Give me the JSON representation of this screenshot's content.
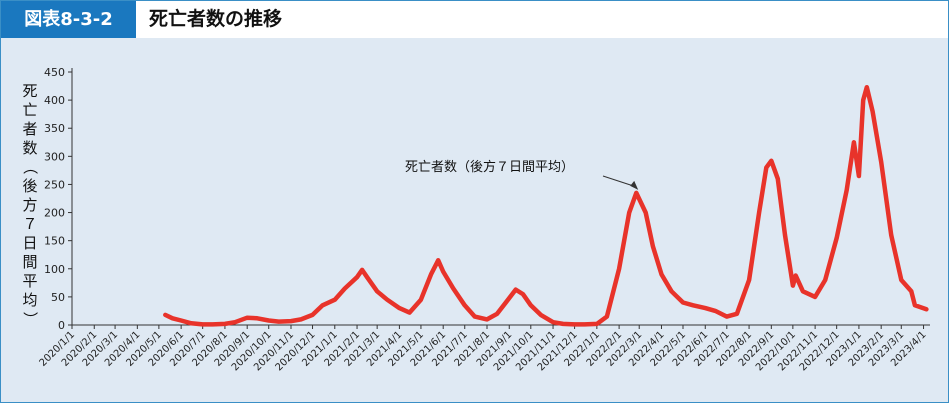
{
  "figure": {
    "badge": "図表8-3-2",
    "title": "死亡者数の推移"
  },
  "chart_data": {
    "type": "line",
    "title": "死亡者数の推移",
    "ylabel": "死亡者数（後方７日間平均）",
    "ylim": [
      0,
      450
    ],
    "yticks": [
      0,
      50,
      100,
      150,
      200,
      250,
      300,
      350,
      400,
      450
    ],
    "x_categories": [
      "2020/1/1",
      "2020/2/1",
      "2020/3/1",
      "2020/4/1",
      "2020/5/1",
      "2020/6/1",
      "2020/7/1",
      "2020/8/1",
      "2020/9/1",
      "2020/10/1",
      "2020/11/1",
      "2020/12/1",
      "2021/1/1",
      "2021/2/1",
      "2021/3/1",
      "2021/4/1",
      "2021/5/1",
      "2021/6/1",
      "2021/7/1",
      "2021/8/1",
      "2021/9/1",
      "2021/10/1",
      "2021/11/1",
      "2021/12/1",
      "2022/1/1",
      "2022/2/1",
      "2022/3/1",
      "2022/4/1",
      "2022/5/1",
      "2022/6/1",
      "2022/7/1",
      "2022/8/1",
      "2022/9/1",
      "2022/10/1",
      "2022/11/1",
      "2022/12/1",
      "2023/1/1",
      "2023/2/1",
      "2023/3/1",
      "2023/4/1"
    ],
    "grid": false,
    "line_color": "#e8332a",
    "annotation": {
      "text": "死亡者数（後方７日間平均）",
      "x": "2022/3/1",
      "y": 235
    },
    "series": [
      {
        "name": "死亡者数（後方７日間平均）",
        "points": [
          [
            "2020/5/10",
            18
          ],
          [
            "2020/5/20",
            12
          ],
          [
            "2020/6/1",
            8
          ],
          [
            "2020/6/15",
            3
          ],
          [
            "2020/7/1",
            1
          ],
          [
            "2020/7/15",
            1
          ],
          [
            "2020/8/1",
            2
          ],
          [
            "2020/8/15",
            5
          ],
          [
            "2020/9/1",
            13
          ],
          [
            "2020/9/15",
            12
          ],
          [
            "2020/10/1",
            8
          ],
          [
            "2020/10/15",
            6
          ],
          [
            "2020/11/1",
            7
          ],
          [
            "2020/11/15",
            10
          ],
          [
            "2020/12/1",
            18
          ],
          [
            "2020/12/15",
            35
          ],
          [
            "2021/1/1",
            45
          ],
          [
            "2021/1/15",
            65
          ],
          [
            "2021/2/1",
            85
          ],
          [
            "2021/2/8",
            98
          ],
          [
            "2021/2/15",
            85
          ],
          [
            "2021/3/1",
            60
          ],
          [
            "2021/3/15",
            45
          ],
          [
            "2021/4/1",
            30
          ],
          [
            "2021/4/15",
            22
          ],
          [
            "2021/5/1",
            45
          ],
          [
            "2021/5/15",
            90
          ],
          [
            "2021/5/25",
            115
          ],
          [
            "2021/6/1",
            95
          ],
          [
            "2021/6/15",
            65
          ],
          [
            "2021/7/1",
            35
          ],
          [
            "2021/7/15",
            15
          ],
          [
            "2021/8/1",
            10
          ],
          [
            "2021/8/15",
            20
          ],
          [
            "2021/9/1",
            48
          ],
          [
            "2021/9/10",
            63
          ],
          [
            "2021/9/20",
            55
          ],
          [
            "2021/10/1",
            35
          ],
          [
            "2021/10/15",
            18
          ],
          [
            "2021/11/1",
            5
          ],
          [
            "2021/11/15",
            2
          ],
          [
            "2021/12/1",
            1
          ],
          [
            "2021/12/15",
            1
          ],
          [
            "2022/1/1",
            2
          ],
          [
            "2022/1/15",
            15
          ],
          [
            "2022/2/1",
            100
          ],
          [
            "2022/2/15",
            200
          ],
          [
            "2022/2/25",
            235
          ],
          [
            "2022/3/10",
            200
          ],
          [
            "2022/3/20",
            140
          ],
          [
            "2022/4/1",
            90
          ],
          [
            "2022/4/15",
            60
          ],
          [
            "2022/5/1",
            40
          ],
          [
            "2022/5/15",
            35
          ],
          [
            "2022/6/1",
            30
          ],
          [
            "2022/6/15",
            25
          ],
          [
            "2022/7/1",
            15
          ],
          [
            "2022/7/15",
            20
          ],
          [
            "2022/8/1",
            80
          ],
          [
            "2022/8/15",
            200
          ],
          [
            "2022/8/25",
            280
          ],
          [
            "2022/9/1",
            292
          ],
          [
            "2022/9/10",
            260
          ],
          [
            "2022/9/20",
            160
          ],
          [
            "2022/10/1",
            70
          ],
          [
            "2022/10/5",
            88
          ],
          [
            "2022/10/15",
            60
          ],
          [
            "2022/11/1",
            50
          ],
          [
            "2022/11/15",
            80
          ],
          [
            "2022/12/1",
            155
          ],
          [
            "2022/12/15",
            240
          ],
          [
            "2022/12/25",
            325
          ],
          [
            "2023/1/1",
            265
          ],
          [
            "2023/1/7",
            400
          ],
          [
            "2023/1/12",
            423
          ],
          [
            "2023/1/20",
            380
          ],
          [
            "2023/2/1",
            290
          ],
          [
            "2023/2/15",
            160
          ],
          [
            "2023/3/1",
            80
          ],
          [
            "2023/3/15",
            60
          ],
          [
            "2023/3/20",
            35
          ],
          [
            "2023/4/5",
            28
          ]
        ]
      }
    ]
  }
}
